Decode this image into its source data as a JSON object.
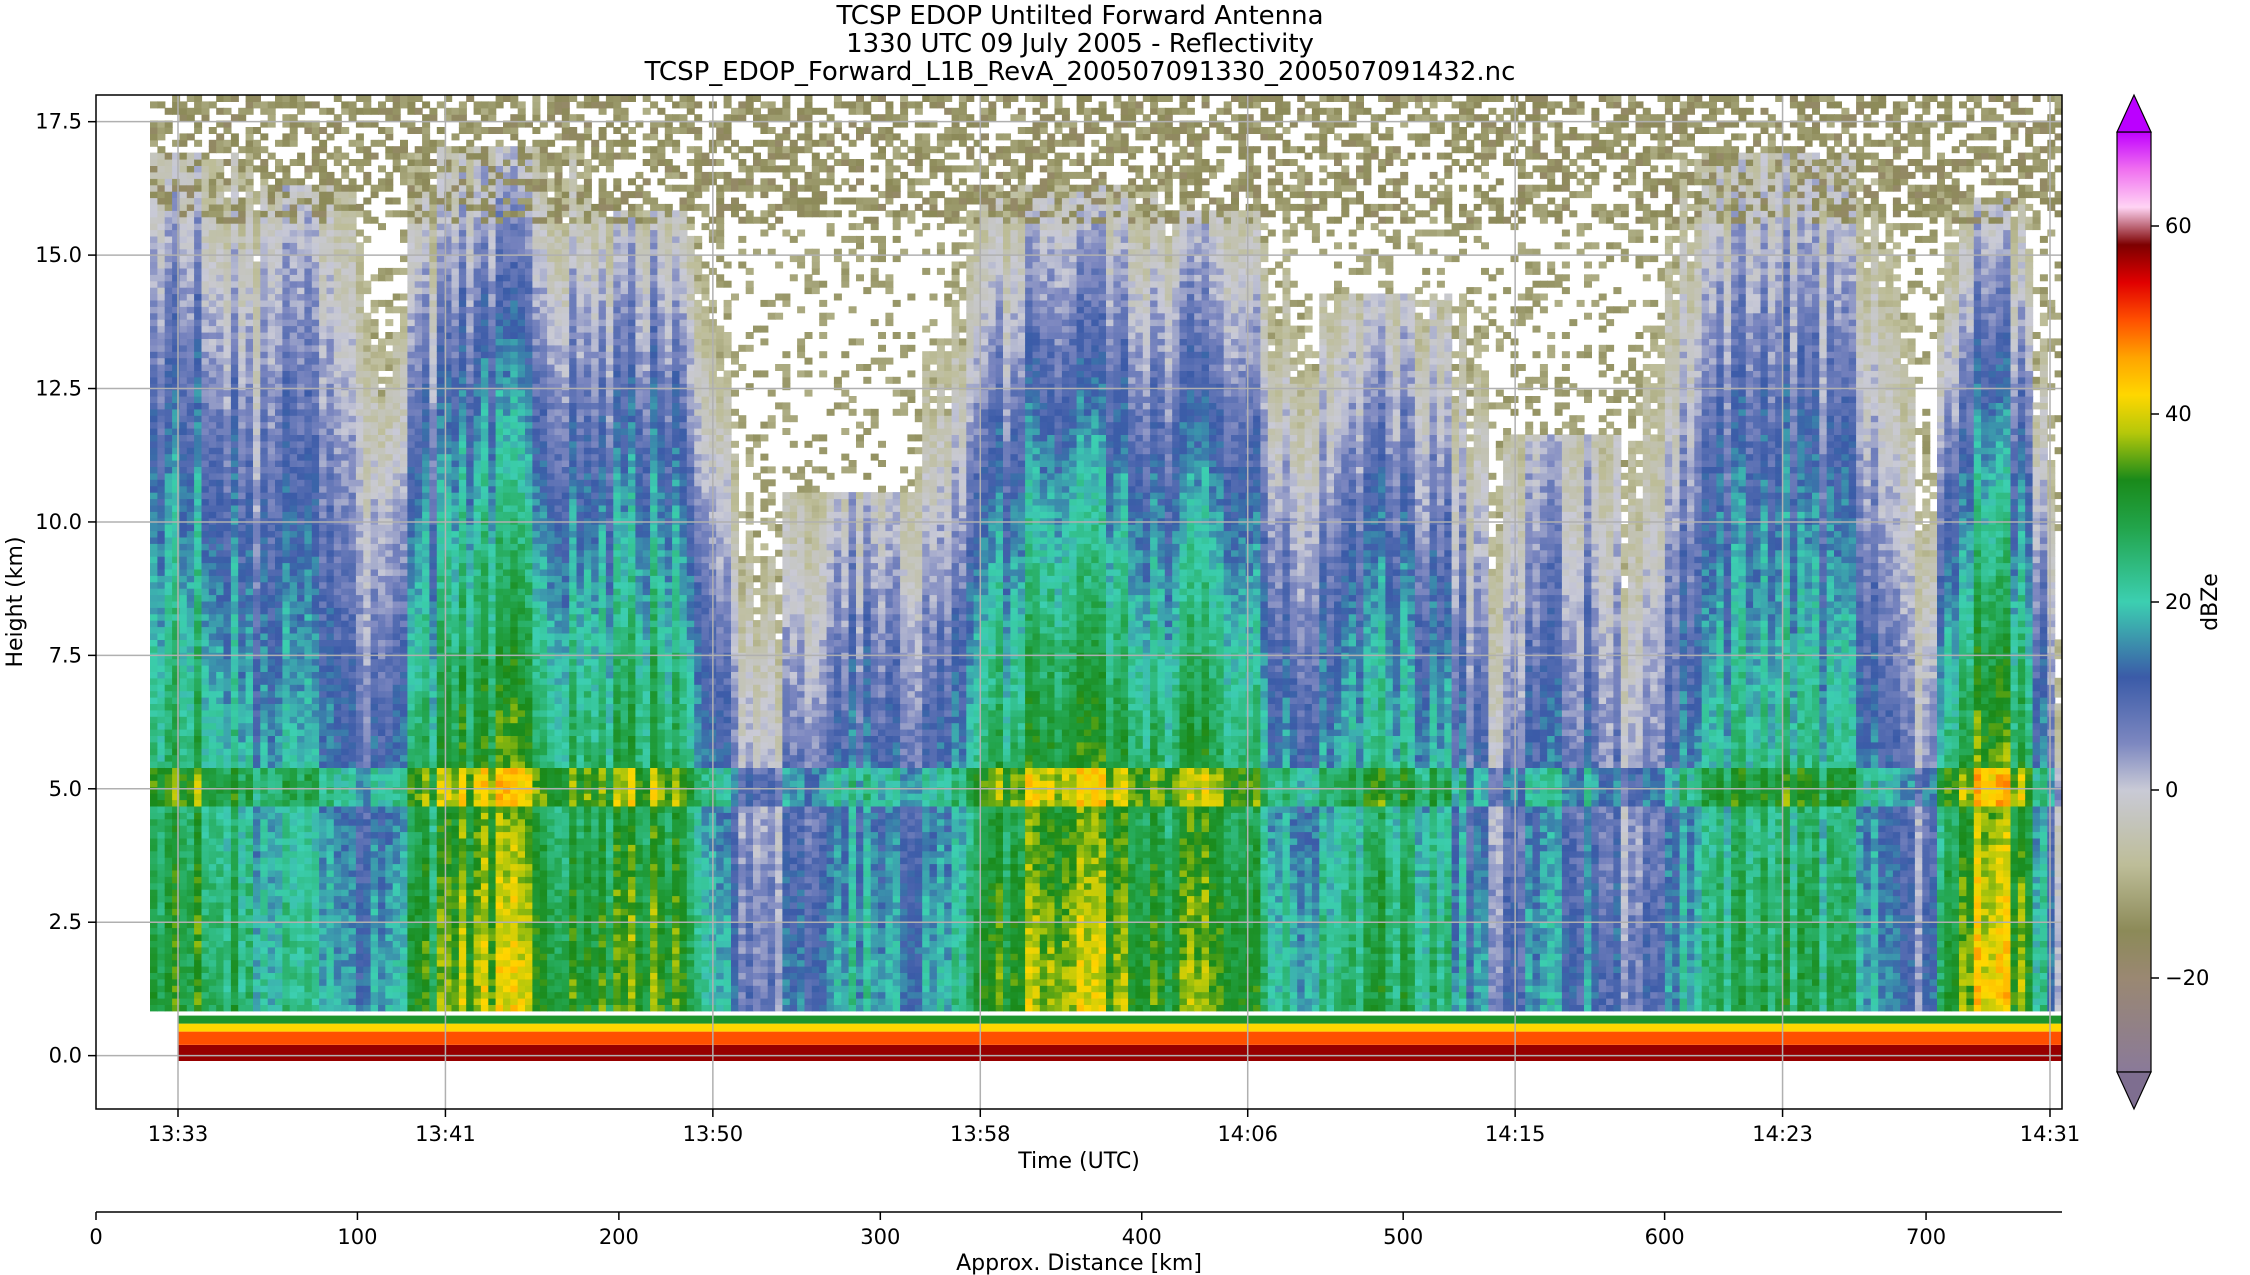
{
  "title_lines": [
    "TCSP EDOP Untilted Forward Antenna",
    "1330 UTC 09 July 2005 - Reflectivity",
    "TCSP_EDOP_Forward_L1B_RevA_200507091330_200507091432.nc"
  ],
  "chart_data": {
    "type": "heatmap",
    "title": "TCSP EDOP Untilted Forward Antenna",
    "subtitle": "1330 UTC 09 July 2005 - Reflectivity",
    "file": "TCSP_EDOP_Forward_L1B_RevA_200507091330_200507091432.nc",
    "xlabel": "Time (UTC)",
    "ylabel": "Height (km)",
    "x_ticks": [
      "13:33",
      "13:41",
      "13:50",
      "13:58",
      "14:06",
      "14:15",
      "14:23",
      "14:31"
    ],
    "y_ticks": [
      "0.0",
      "2.5",
      "5.0",
      "7.5",
      "10.0",
      "12.5",
      "15.0",
      "17.5"
    ],
    "y_tick_values": [
      0,
      2.5,
      5,
      7.5,
      10,
      12.5,
      15,
      17.5
    ],
    "ylim": [
      -1,
      18
    ],
    "grid": true,
    "secondary_x_axis": {
      "label": "Approx. Distance [km]",
      "ticks": [
        "0",
        "100",
        "200",
        "300",
        "400",
        "500",
        "600",
        "700"
      ],
      "tick_values": [
        0,
        100,
        200,
        300,
        400,
        500,
        600,
        700
      ],
      "range": [
        0,
        752
      ]
    },
    "colorbar": {
      "label": "dBZe",
      "ticks": [
        "60",
        "40",
        "20",
        "0",
        "−20"
      ],
      "tick_values": [
        60,
        40,
        20,
        0,
        -20
      ],
      "range": [
        -30,
        70
      ],
      "extend": "both"
    },
    "bright_band_height_km": 5.0,
    "surface_return_height_km": 0.2
  },
  "colors": {
    "colormap_stops": [
      {
        "v": -30,
        "c": "#8a7a99"
      },
      {
        "v": -20,
        "c": "#9a8872"
      },
      {
        "v": -15,
        "c": "#8c8a58"
      },
      {
        "v": -8,
        "c": "#bdbd98"
      },
      {
        "v": 0,
        "c": "#c9cad6"
      },
      {
        "v": 5,
        "c": "#7c87c0"
      },
      {
        "v": 12,
        "c": "#3b5ba8"
      },
      {
        "v": 20,
        "c": "#3ccfb1"
      },
      {
        "v": 28,
        "c": "#22a44a"
      },
      {
        "v": 33,
        "c": "#1a8a1a"
      },
      {
        "v": 38,
        "c": "#b5c80a"
      },
      {
        "v": 42,
        "c": "#ffd700"
      },
      {
        "v": 46,
        "c": "#ffa400"
      },
      {
        "v": 50,
        "c": "#ff5000"
      },
      {
        "v": 54,
        "c": "#e10000"
      },
      {
        "v": 58,
        "c": "#7d0000"
      },
      {
        "v": 62,
        "c": "#ffd4f4"
      },
      {
        "v": 66,
        "c": "#f070f0"
      },
      {
        "v": 70,
        "c": "#c000ff"
      }
    ],
    "extend_low": "#7e6e90",
    "extend_high": "#bb00ff"
  }
}
